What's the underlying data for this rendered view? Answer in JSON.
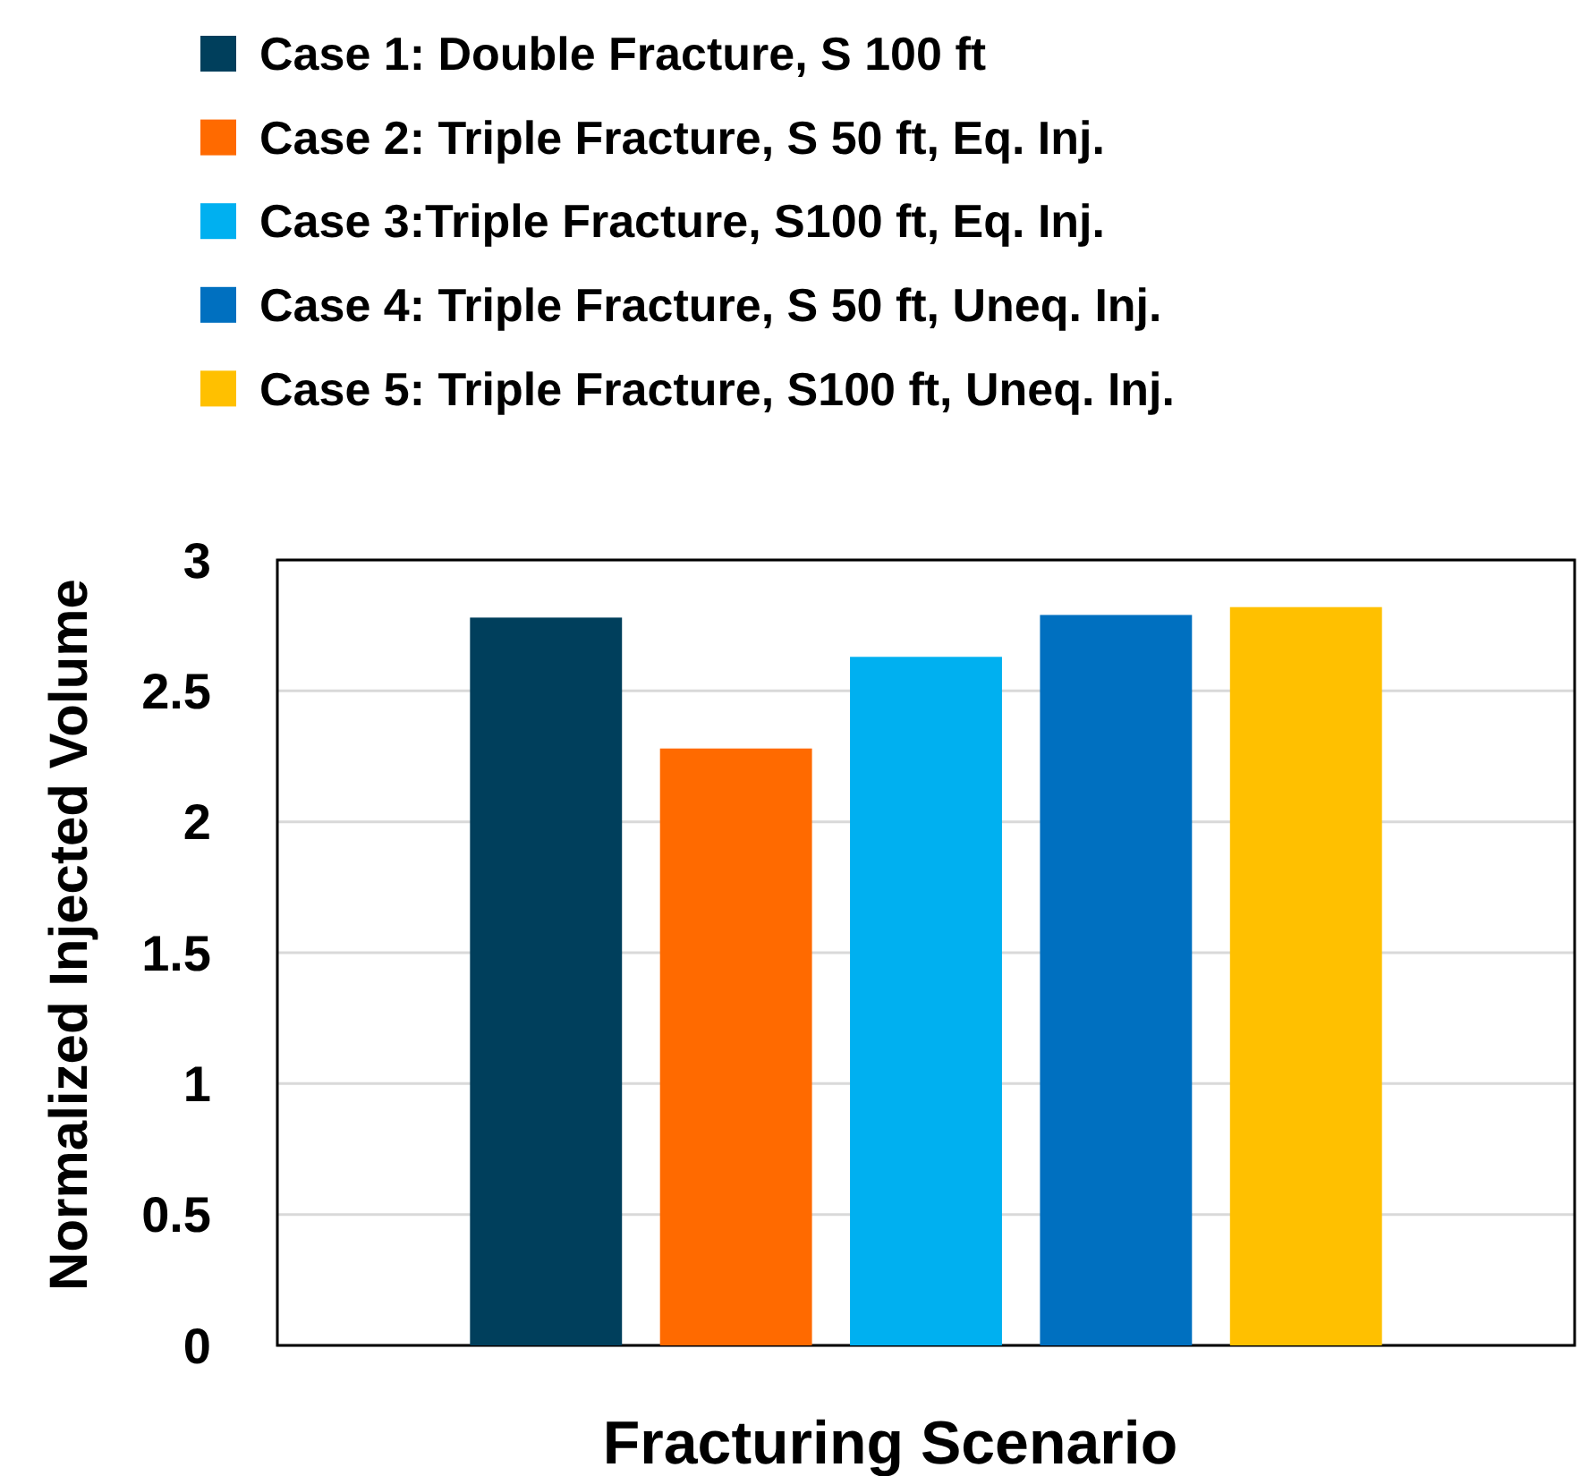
{
  "chart_data": {
    "type": "bar",
    "xlabel": "Fracturing Scenario",
    "ylabel": "Normalized Injected Volume",
    "categories": [
      null
    ],
    "series": [
      {
        "name": "Case 1: Double Fracture, S 100 ft",
        "color": "#003f5c",
        "values": [
          2.78
        ]
      },
      {
        "name": "Case 2: Triple Fracture, S 50 ft, Eq. Inj.",
        "color": "#ff6a00",
        "values": [
          2.28
        ]
      },
      {
        "name": "Case 3:Triple Fracture, S100 ft, Eq. Inj.",
        "color": "#00b0f0",
        "values": [
          2.63
        ]
      },
      {
        "name": "Case 4: Triple Fracture, S 50 ft, Uneq. Inj.",
        "color": "#0070c0",
        "values": [
          2.79
        ]
      },
      {
        "name": "Case 5: Triple Fracture, S100 ft, Uneq. Inj.",
        "color": "#ffc000",
        "values": [
          2.82
        ]
      }
    ],
    "ylim": [
      0,
      3
    ],
    "yticks": [
      0,
      0.5,
      1,
      1.5,
      2,
      2.5,
      3
    ],
    "grid": "y",
    "legend": "top"
  }
}
